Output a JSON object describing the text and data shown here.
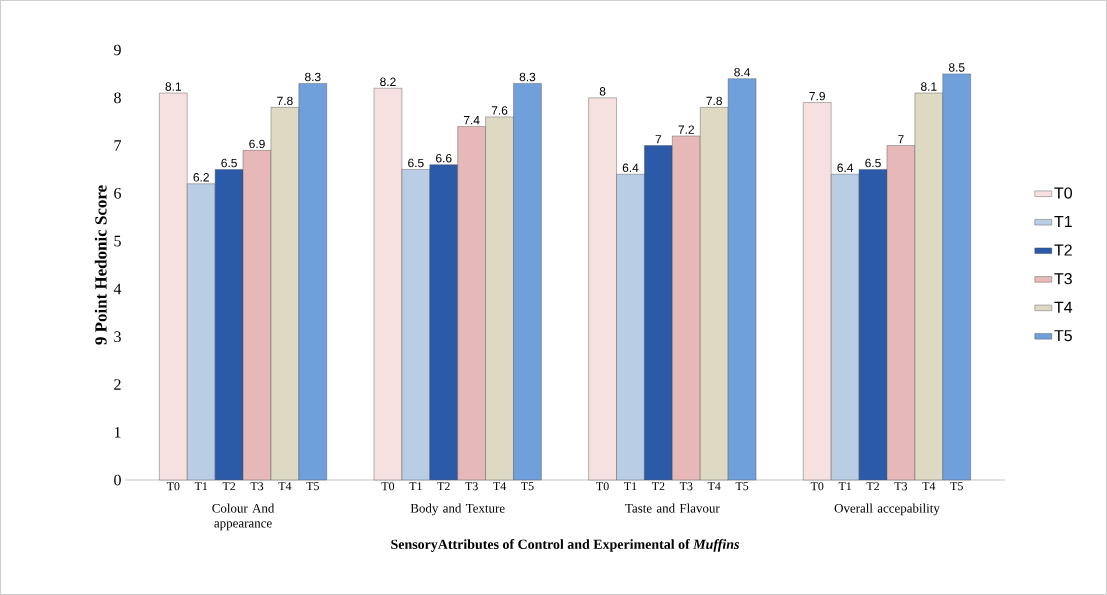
{
  "chart_data": {
    "type": "bar",
    "ylabel": "9 Point Hedonic Score",
    "xlabel": "SensoryAttributes of Control and Experimental of *Muffins*",
    "categories": [
      "Colour And appearance",
      "Body and Texture",
      "Taste and Flavour",
      "Overall accepability"
    ],
    "series": [
      {
        "name": "T0",
        "color": "#f6e0e0",
        "values": [
          8.1,
          8.2,
          8,
          7.9
        ]
      },
      {
        "name": "T1",
        "color": "#b9cde5",
        "values": [
          6.2,
          6.5,
          6.4,
          6.4
        ]
      },
      {
        "name": "T2",
        "color": "#2a5aa8",
        "values": [
          6.5,
          6.6,
          7,
          6.5
        ]
      },
      {
        "name": "T3",
        "color": "#e6b9b8",
        "values": [
          6.9,
          7.4,
          7.2,
          7
        ]
      },
      {
        "name": "T4",
        "color": "#ddd9c3",
        "values": [
          7.8,
          7.6,
          7.8,
          8.1
        ]
      },
      {
        "name": "T5",
        "color": "#6fa0dc",
        "values": [
          8.3,
          8.3,
          8.4,
          8.5
        ]
      }
    ],
    "ylim": [
      0,
      9
    ],
    "yticks": [
      0,
      1,
      2,
      3,
      4,
      5,
      6,
      7,
      8,
      9
    ],
    "data_labels": true,
    "legend": "right"
  }
}
